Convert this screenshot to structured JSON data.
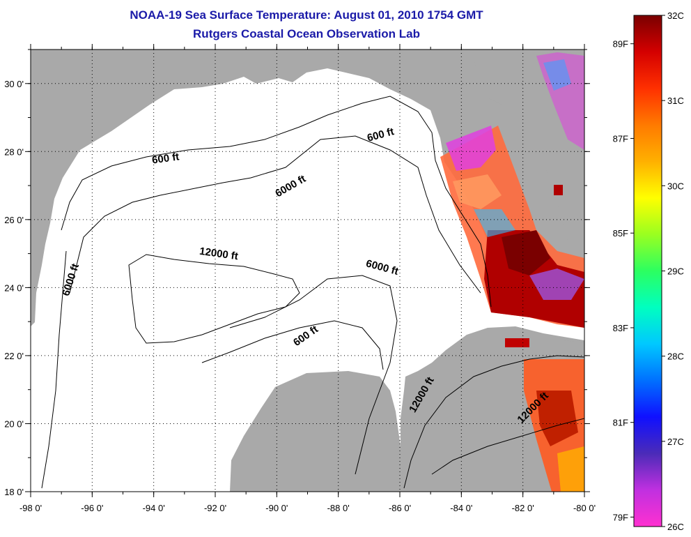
{
  "header": {
    "title": "NOAA-19 Sea Surface Temperature:  August 01, 2010 1754 GMT",
    "subtitle": "Rutgers Coastal Ocean Observation Lab"
  },
  "map": {
    "lon_range": [
      -98,
      -80
    ],
    "lat_range": [
      18,
      31
    ],
    "x_ticks": [
      {
        "lon": -98,
        "label": "-98 0'"
      },
      {
        "lon": -96,
        "label": "-96 0'"
      },
      {
        "lon": -94,
        "label": "-94 0'"
      },
      {
        "lon": -92,
        "label": "-92 0'"
      },
      {
        "lon": -90,
        "label": "-90 0'"
      },
      {
        "lon": -88,
        "label": "-88 0'"
      },
      {
        "lon": -86,
        "label": "-86 0'"
      },
      {
        "lon": -84,
        "label": "-84 0'"
      },
      {
        "lon": -82,
        "label": "-82 0'"
      },
      {
        "lon": -80,
        "label": "-80 0'"
      }
    ],
    "y_ticks": [
      {
        "lat": 18,
        "label": "18 0'"
      },
      {
        "lat": 20,
        "label": "20 0'"
      },
      {
        "lat": 22,
        "label": "22 0'"
      },
      {
        "lat": 24,
        "label": "24 0'"
      },
      {
        "lat": 26,
        "label": "26 0'"
      },
      {
        "lat": 28,
        "label": "28 0'"
      },
      {
        "lat": 30,
        "label": "30 0'"
      }
    ],
    "contour_labels": [
      {
        "text": "600 ft",
        "lon": -86.6,
        "lat": 28.4,
        "rot": -15
      },
      {
        "text": "600 ft",
        "lon": -93.6,
        "lat": 27.7,
        "rot": -8
      },
      {
        "text": "6000 ft",
        "lon": -89.5,
        "lat": 26.9,
        "rot": -30
      },
      {
        "text": "6000 ft",
        "lon": -96.6,
        "lat": 24.2,
        "rot": -72
      },
      {
        "text": "12000 ft",
        "lon": -91.9,
        "lat": 24.9,
        "rot": 8
      },
      {
        "text": "6000 ft",
        "lon": -86.6,
        "lat": 24.5,
        "rot": 15
      },
      {
        "text": "600 ft",
        "lon": -89.0,
        "lat": 22.5,
        "rot": -35
      },
      {
        "text": "12000 ft",
        "lon": -85.2,
        "lat": 20.8,
        "rot": -60
      },
      {
        "text": "12000 ft",
        "lon": -81.6,
        "lat": 20.4,
        "rot": -45
      }
    ],
    "colors": {
      "land": "#a9a9a9",
      "ocean": "#ffffff"
    }
  },
  "colorbar": {
    "celsius": [
      {
        "value": 32,
        "label": "32C"
      },
      {
        "value": 31,
        "label": "31C"
      },
      {
        "value": 30,
        "label": "30C"
      },
      {
        "value": 29,
        "label": "29C"
      },
      {
        "value": 28,
        "label": "28C"
      },
      {
        "value": 27,
        "label": "27C"
      },
      {
        "value": 26,
        "label": "26C"
      }
    ],
    "fahrenheit": [
      {
        "value": 89,
        "label": "89F"
      },
      {
        "value": 87,
        "label": "87F"
      },
      {
        "value": 85,
        "label": "85F"
      },
      {
        "value": 83,
        "label": "83F"
      },
      {
        "value": 81,
        "label": "81F"
      },
      {
        "value": 79,
        "label": "79F"
      }
    ],
    "gradient_stops": [
      "#7a0000",
      "#d40000",
      "#ff3000",
      "#ff7a00",
      "#ffb000",
      "#ffff00",
      "#9aff20",
      "#2cff60",
      "#00ffc0",
      "#00c8ff",
      "#0070ff",
      "#1010ff",
      "#4b2bb8",
      "#c030e0",
      "#ff30d0"
    ]
  }
}
